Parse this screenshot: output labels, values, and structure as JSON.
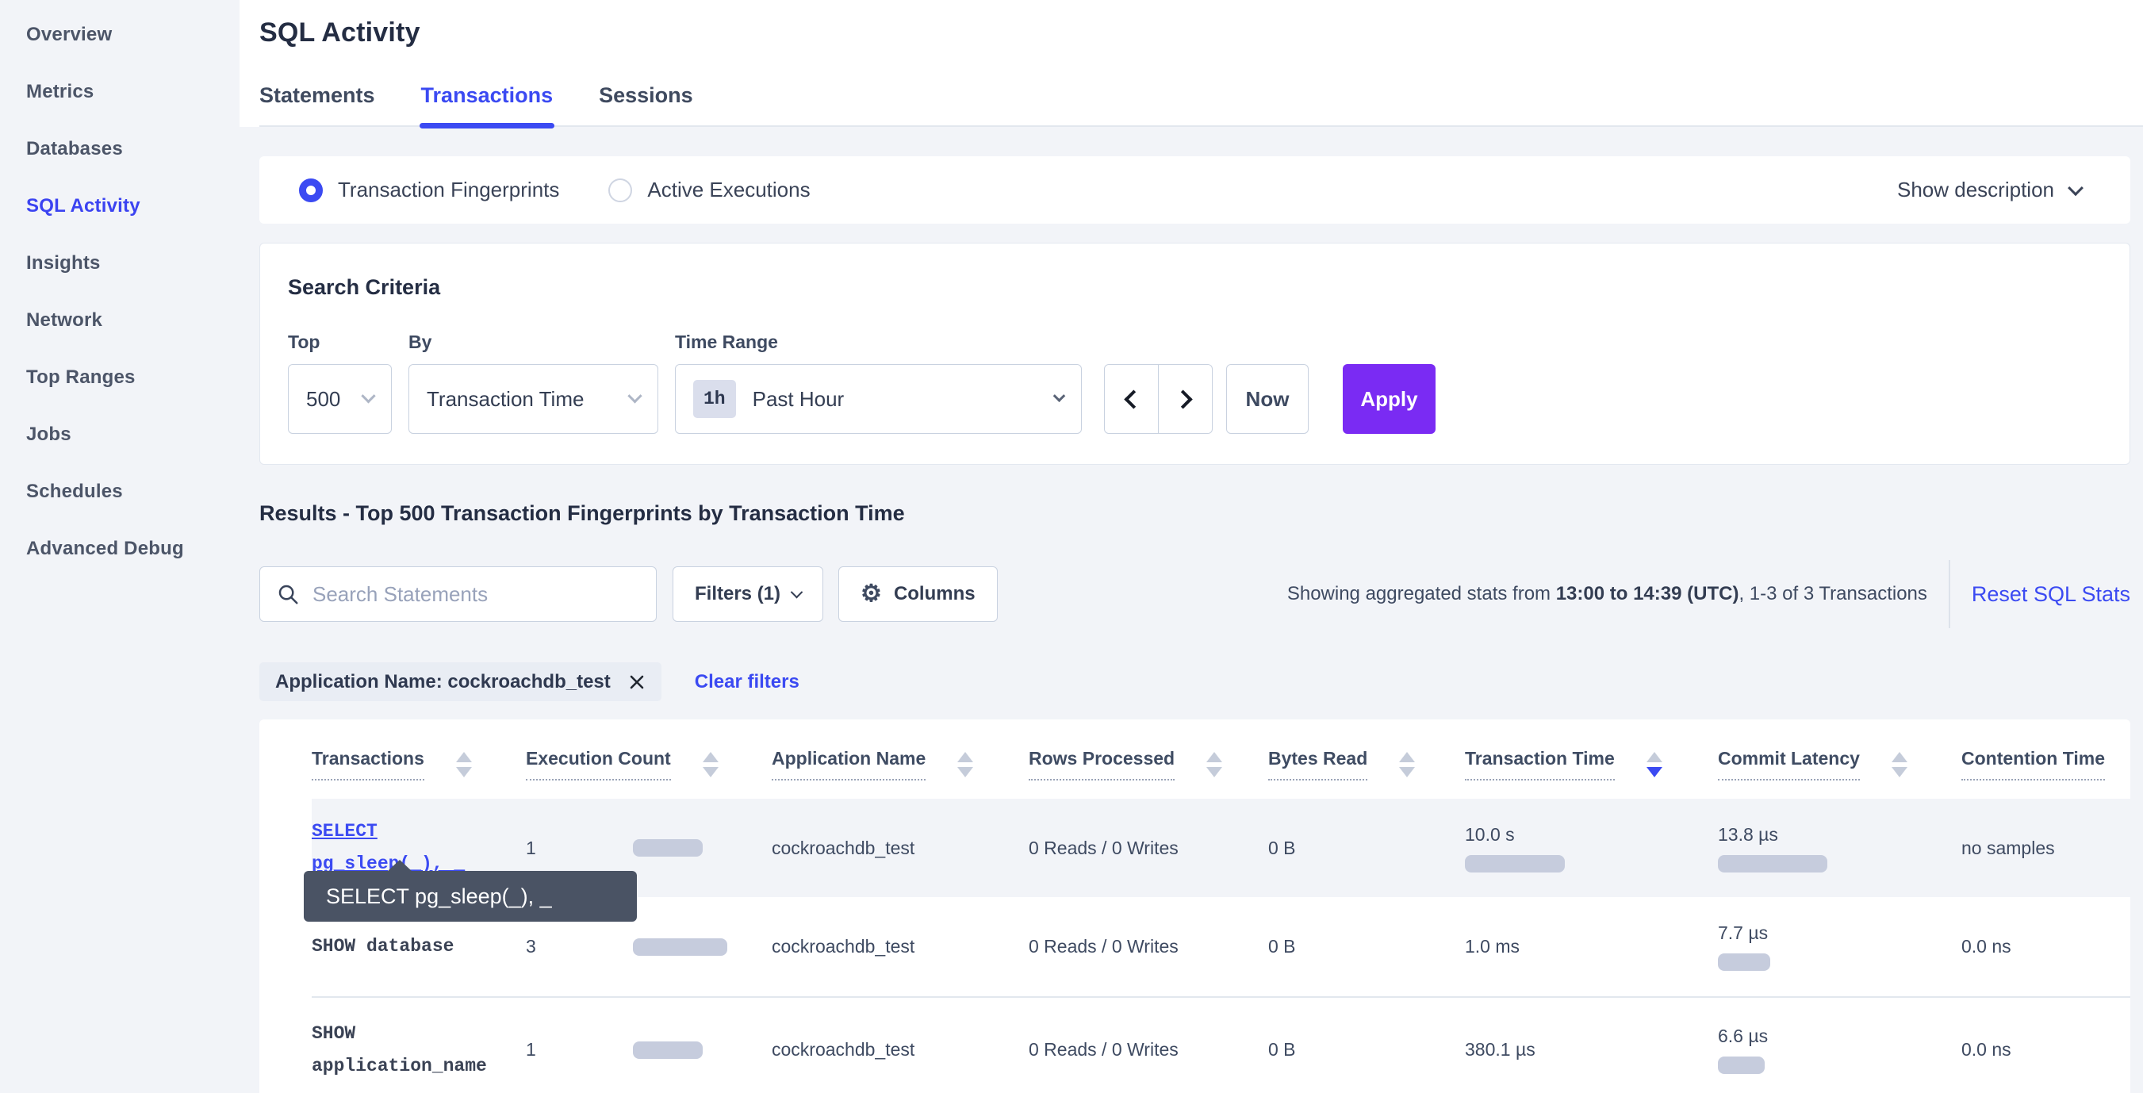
{
  "colors": {
    "accent": "#3b4af2",
    "sidebar_active": "#3b43f1",
    "apply": "#7a2bf3",
    "bar": "#c6ccdd",
    "tooltip": "#4a5364",
    "page_bg": "#f2f4f8"
  },
  "sidebar": {
    "items": [
      {
        "label": "Overview"
      },
      {
        "label": "Metrics"
      },
      {
        "label": "Databases"
      },
      {
        "label": "SQL Activity",
        "active": true
      },
      {
        "label": "Insights"
      },
      {
        "label": "Network"
      },
      {
        "label": "Top Ranges"
      },
      {
        "label": "Jobs"
      },
      {
        "label": "Schedules"
      },
      {
        "label": "Advanced Debug"
      }
    ]
  },
  "header": {
    "title": "SQL Activity",
    "tabs": [
      {
        "label": "Statements",
        "active": false
      },
      {
        "label": "Transactions",
        "active": true
      },
      {
        "label": "Sessions",
        "active": false
      }
    ]
  },
  "view_mode": {
    "options": [
      {
        "label": "Transaction Fingerprints",
        "selected": true
      },
      {
        "label": "Active Executions",
        "selected": false
      }
    ],
    "show_description_label": "Show description"
  },
  "search_criteria": {
    "heading": "Search Criteria",
    "top": {
      "label": "Top",
      "value": "500"
    },
    "by": {
      "label": "By",
      "value": "Transaction Time"
    },
    "time_range": {
      "label": "Time Range",
      "badge": "1h",
      "value": "Past Hour"
    },
    "now_label": "Now",
    "apply_label": "Apply"
  },
  "results": {
    "heading": "Results - Top 500 Transaction Fingerprints by Transaction Time",
    "search_placeholder": "Search Statements",
    "search_value": "",
    "filters_label": "Filters (1)",
    "columns_label": "Columns",
    "stats_prefix": "Showing aggregated stats from ",
    "stats_range": "13:00 to 14:39 (UTC)",
    "stats_suffix": ", 1-3 of 3 Transactions",
    "reset_label": "Reset SQL Stats",
    "filter_chip": "Application Name: cockroachdb_test",
    "clear_filters_label": "Clear filters"
  },
  "icons": {
    "gear": "⚙"
  },
  "tooltip": {
    "text": "SELECT pg_sleep(_), _"
  },
  "table": {
    "columns": [
      "Transactions",
      "Execution Count",
      "Application Name",
      "Rows Processed",
      "Bytes Read",
      "Transaction Time",
      "Commit Latency",
      "Contention Time"
    ],
    "sort": {
      "column": "Transaction Time",
      "direction": "desc"
    },
    "rows": [
      {
        "transaction": "SELECT pg_sleep(_), _",
        "is_link": true,
        "execution_count": "1",
        "exec_bar": 88,
        "application_name": "cockroachdb_test",
        "rows_processed": "0 Reads / 0 Writes",
        "bytes_read": "0 B",
        "transaction_time": "10.0 s",
        "txn_bar": 126,
        "commit_latency": "13.8 µs",
        "commit_bar": 138,
        "contention_time": "no samples"
      },
      {
        "transaction": "SHOW database",
        "is_link": false,
        "execution_count": "3",
        "exec_bar": 119,
        "application_name": "cockroachdb_test",
        "rows_processed": "0 Reads / 0 Writes",
        "bytes_read": "0 B",
        "transaction_time": "1.0 ms",
        "txn_bar": 0,
        "commit_latency": "7.7 µs",
        "commit_bar": 66,
        "contention_time": "0.0 ns"
      },
      {
        "transaction": "SHOW application_name",
        "is_link": false,
        "execution_count": "1",
        "exec_bar": 88,
        "application_name": "cockroachdb_test",
        "rows_processed": "0 Reads / 0 Writes",
        "bytes_read": "0 B",
        "transaction_time": "380.1 µs",
        "txn_bar": 0,
        "commit_latency": "6.6 µs",
        "commit_bar": 59,
        "contention_time": "0.0 ns"
      }
    ]
  }
}
